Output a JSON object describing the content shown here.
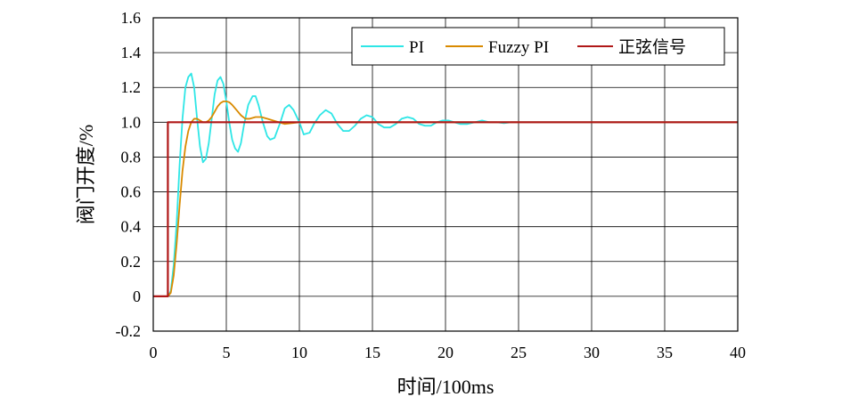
{
  "chart_data": {
    "type": "line",
    "xlabel": "时间/100ms",
    "ylabel": "阀门开度/%",
    "xlim": [
      0,
      40
    ],
    "ylim": [
      -0.2,
      1.6
    ],
    "xticks": [
      0,
      5,
      10,
      15,
      20,
      25,
      30,
      35,
      40
    ],
    "yticks": [
      -0.2,
      0,
      0.2,
      0.4,
      0.6,
      0.8,
      1.0,
      1.2,
      1.4,
      1.6
    ],
    "ytick_labels": [
      "-0.2",
      "0",
      "0.2",
      "0.4",
      "0.6",
      "0.8",
      "1.0",
      "1.2",
      "1.4",
      "1.6"
    ],
    "grid": true,
    "legend_position": "top-right",
    "series": [
      {
        "name": "PI",
        "color": "#2ee6e6",
        "x": [
          0,
          1.0,
          1.2,
          1.4,
          1.6,
          1.8,
          2.0,
          2.2,
          2.4,
          2.6,
          2.8,
          3.0,
          3.2,
          3.4,
          3.6,
          3.8,
          4.0,
          4.2,
          4.4,
          4.6,
          4.8,
          5.0,
          5.2,
          5.4,
          5.6,
          5.8,
          6.0,
          6.2,
          6.5,
          6.8,
          7.0,
          7.2,
          7.5,
          7.8,
          8.0,
          8.3,
          8.7,
          9.0,
          9.3,
          9.6,
          10.0,
          10.3,
          10.7,
          11.0,
          11.4,
          11.8,
          12.2,
          12.6,
          13.0,
          13.4,
          13.8,
          14.2,
          14.6,
          15.0,
          15.4,
          15.8,
          16.2,
          16.6,
          17.0,
          17.4,
          17.8,
          18.2,
          18.6,
          19.0,
          19.4,
          19.8,
          20.2,
          20.6,
          21.0,
          21.5,
          22.0,
          22.5,
          23.0,
          23.5,
          24.0,
          24.5,
          25.0,
          26.0,
          27.0,
          28.0,
          29.0,
          30.0,
          32.0,
          35.0,
          40.0
        ],
        "values": [
          0,
          0,
          0.03,
          0.18,
          0.42,
          0.75,
          1.02,
          1.2,
          1.26,
          1.28,
          1.2,
          1.02,
          0.86,
          0.77,
          0.79,
          0.88,
          1.02,
          1.16,
          1.24,
          1.26,
          1.22,
          1.12,
          1.0,
          0.9,
          0.85,
          0.83,
          0.88,
          0.98,
          1.1,
          1.15,
          1.15,
          1.1,
          1.0,
          0.92,
          0.9,
          0.91,
          1.0,
          1.08,
          1.1,
          1.07,
          1.0,
          0.93,
          0.94,
          0.99,
          1.04,
          1.07,
          1.05,
          0.99,
          0.95,
          0.95,
          0.98,
          1.02,
          1.04,
          1.03,
          0.99,
          0.97,
          0.97,
          0.99,
          1.02,
          1.03,
          1.02,
          0.99,
          0.98,
          0.98,
          1.0,
          1.01,
          1.01,
          1.0,
          0.99,
          0.99,
          1.0,
          1.01,
          1.0,
          1.0,
          0.995,
          1.0,
          1.0,
          1.0,
          1.0,
          1.0,
          1.0,
          1.0,
          1.0,
          1.0,
          1.0
        ]
      },
      {
        "name": "Fuzzy PI",
        "color": "#d98a00",
        "x": [
          0,
          1.0,
          1.2,
          1.4,
          1.6,
          1.8,
          2.0,
          2.2,
          2.4,
          2.6,
          2.8,
          3.0,
          3.2,
          3.4,
          3.6,
          3.8,
          4.0,
          4.2,
          4.4,
          4.6,
          4.8,
          5.0,
          5.2,
          5.4,
          5.6,
          5.8,
          6.0,
          6.3,
          6.6,
          7.0,
          7.4,
          7.8,
          8.2,
          8.6,
          9.0,
          10.0,
          12.0,
          15.0,
          20.0,
          30.0,
          40.0
        ],
        "values": [
          0,
          0,
          0.02,
          0.12,
          0.3,
          0.52,
          0.72,
          0.86,
          0.95,
          1.0,
          1.02,
          1.02,
          1.01,
          1.0,
          1.0,
          1.01,
          1.03,
          1.06,
          1.09,
          1.11,
          1.12,
          1.12,
          1.115,
          1.1,
          1.08,
          1.06,
          1.04,
          1.02,
          1.02,
          1.03,
          1.03,
          1.02,
          1.01,
          1.0,
          0.99,
          1.0,
          1.0,
          1.0,
          1.0,
          1.0,
          1.0
        ]
      },
      {
        "name": "正弦信号",
        "color": "#b01818",
        "x": [
          0,
          1.0,
          1.0,
          40.0
        ],
        "values": [
          0,
          0,
          1.0,
          1.0
        ]
      }
    ]
  }
}
